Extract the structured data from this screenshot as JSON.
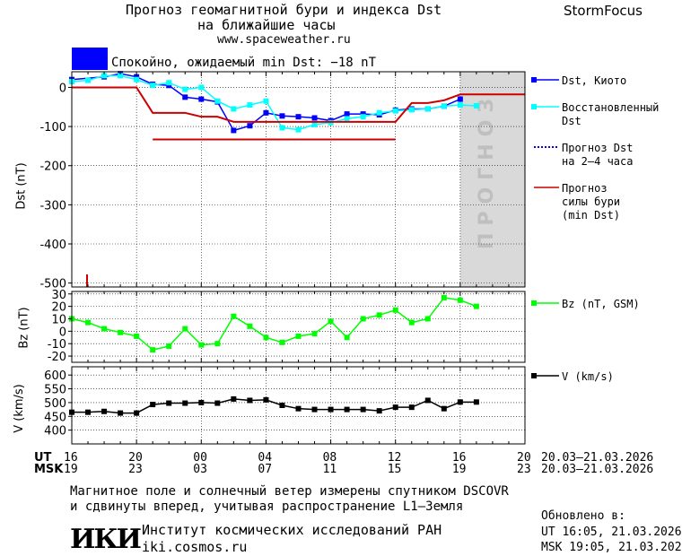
{
  "header": {
    "title_line1": "Прогноз геомагнитной бури и индекса Dst",
    "title_line2": "на ближайшие часы",
    "site": "www.spaceweather.ru",
    "brand": "StormFocus",
    "status_text": "Спокойно, ожидаемый min Dst: −18 nT",
    "status_color": "#0000ff"
  },
  "legend": {
    "dst_kyoto": "Dst, Киото",
    "restored_l1": "Восстановленный",
    "restored_l2": "Dst",
    "forecast_dst_l1": "Прогноз Dst",
    "forecast_dst_l2": "на 2–4 часа",
    "storm_l1": "Прогноз",
    "storm_l2": "силы бури",
    "storm_l3": "(min Dst)",
    "bz": "Bz (nT, GSM)",
    "v": "V (km/s)",
    "forecast_zone": "ПРОГНОЗ"
  },
  "time_axis": {
    "ut_label": "UT",
    "msk_label": "MSK",
    "ut_ticks": [
      "16",
      "20",
      "00",
      "04",
      "08",
      "12",
      "16",
      "20"
    ],
    "msk_ticks": [
      "19",
      "23",
      "03",
      "07",
      "11",
      "15",
      "19",
      "23"
    ],
    "ut_range": "20.03–21.03.2026",
    "msk_range": "20.03–21.03.2026"
  },
  "footer": {
    "note_l1": "Магнитное поле и солнечный ветер измерены спутником DSCOVR",
    "note_l2": "и сдвинуты вперед, учитывая распространение L1–Земля",
    "logo": "ИКИ",
    "institute": "Институт космических исследований РАН",
    "site": "iki.cosmos.ru",
    "updated_label": "Обновлено в:",
    "updated_ut": "UT  16:05, 21.03.2026",
    "updated_msk": "MSK 19:05, 21.03.2026"
  },
  "chart_data": [
    {
      "type": "line",
      "panel": "dst",
      "ylabel": "Dst (nT)",
      "ylim": [
        -510,
        40
      ],
      "yticks": [
        0,
        -100,
        -200,
        -300,
        -400,
        -500
      ],
      "xlim_hours": [
        0,
        28
      ],
      "forecast_shade_from_hour": 24,
      "series": [
        {
          "name": "Dst, Киото",
          "color": "#0000ff",
          "x": [
            0,
            2,
            3,
            4,
            5,
            6,
            7,
            8,
            9,
            10,
            11,
            12,
            13,
            14,
            15,
            16,
            17,
            18,
            19,
            20,
            21,
            22,
            23,
            24
          ],
          "y": [
            20,
            27,
            35,
            27,
            8,
            5,
            -25,
            -30,
            -37,
            -110,
            -98,
            -65,
            -73,
            -75,
            -78,
            -85,
            -68,
            -68,
            -70,
            -58,
            -55,
            -55,
            -48,
            -30
          ]
        },
        {
          "name": "Восстановленный Dst",
          "color": "#00ffff",
          "x": [
            0,
            1,
            2,
            3,
            4,
            5,
            6,
            7,
            8,
            9,
            10,
            11,
            12,
            13,
            14,
            15,
            16,
            17,
            18,
            19,
            20,
            21,
            22,
            23,
            24,
            25
          ],
          "y": [
            15,
            18,
            30,
            30,
            20,
            5,
            12,
            -5,
            0,
            -35,
            -55,
            -45,
            -35,
            -103,
            -108,
            -95,
            -90,
            -80,
            -75,
            -65,
            -60,
            -57,
            -55,
            -48,
            -45,
            -47
          ]
        },
        {
          "name": "Прогноз Dst на 2–4 часа",
          "color": "#0000ff",
          "dash": true,
          "x": [
            24,
            28
          ],
          "y": [
            -18,
            -18
          ]
        },
        {
          "name": "Прогноз силы бури (min Dst)",
          "color": "#cc0000",
          "x": [
            0,
            4,
            5,
            7,
            8,
            9,
            10,
            11,
            12,
            13,
            14,
            15,
            16,
            17,
            18,
            19,
            20,
            21,
            22,
            23,
            24,
            25,
            26,
            27,
            28
          ],
          "y": [
            0,
            0,
            -65,
            -65,
            -75,
            -75,
            -88,
            -88,
            -88,
            -88,
            -88,
            -88,
            -88,
            -88,
            -88,
            -88,
            -88,
            -40,
            -40,
            -33,
            -18,
            -18,
            -18,
            -18,
            -18
          ]
        },
        {
          "name": "storm level",
          "color": "#cc0000",
          "x": [
            5,
            20
          ],
          "y": [
            -133,
            -133
          ]
        }
      ]
    },
    {
      "type": "line",
      "panel": "bz",
      "ylabel": "Bz (nT)",
      "ylim": [
        -25,
        32
      ],
      "yticks": [
        30,
        20,
        10,
        0,
        -10,
        -20
      ],
      "series": [
        {
          "name": "Bz (nT, GSM)",
          "color": "#00ff00",
          "x": [
            0,
            1,
            2,
            3,
            4,
            5,
            6,
            7,
            8,
            9,
            10,
            11,
            12,
            13,
            14,
            15,
            16,
            17,
            18,
            19,
            20,
            21,
            22,
            23,
            24,
            25
          ],
          "y": [
            10,
            7,
            2,
            -1,
            -4,
            -15,
            -12,
            2,
            -11,
            -10,
            12,
            4,
            -5,
            -9,
            -4,
            -2,
            8,
            -5,
            10,
            13,
            17,
            7,
            10,
            27,
            25,
            20
          ]
        }
      ]
    },
    {
      "type": "line",
      "panel": "v",
      "ylabel": "V (km/s)",
      "ylim": [
        350,
        630
      ],
      "yticks": [
        600,
        550,
        500,
        450,
        400
      ],
      "series": [
        {
          "name": "V (km/s)",
          "color": "#000000",
          "x": [
            0,
            1,
            2,
            3,
            4,
            5,
            6,
            7,
            8,
            9,
            10,
            11,
            12,
            13,
            14,
            15,
            16,
            17,
            18,
            19,
            20,
            21,
            22,
            23,
            24,
            25
          ],
          "y": [
            465,
            465,
            468,
            462,
            462,
            493,
            498,
            498,
            500,
            498,
            513,
            508,
            510,
            490,
            478,
            475,
            475,
            475,
            475,
            470,
            483,
            483,
            508,
            478,
            502,
            502
          ]
        }
      ]
    }
  ]
}
